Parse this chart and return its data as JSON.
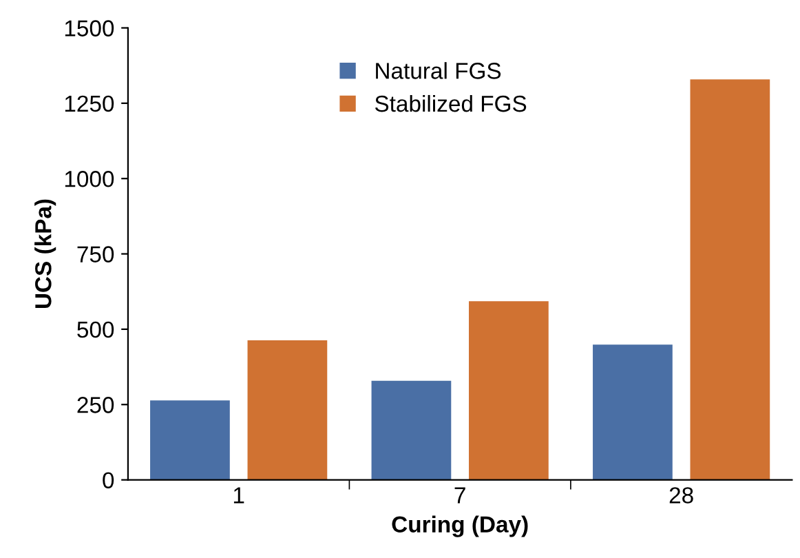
{
  "chart_data": {
    "type": "bar",
    "xlabel": "Curing (Day)",
    "ylabel": "UCS (kPa)",
    "categories": [
      "1",
      "7",
      "28"
    ],
    "series": [
      {
        "name": "Natural FGS",
        "color": "#4a6fa5",
        "values": [
          264,
          329,
          449
        ]
      },
      {
        "name": "Stabilized FGS",
        "color": "#d07232",
        "values": [
          463,
          593,
          1329
        ]
      }
    ],
    "ylim": [
      0,
      1500
    ],
    "yticks": [
      0,
      250,
      500,
      750,
      1000,
      1250,
      1500
    ],
    "grid": false,
    "legend": "top"
  }
}
